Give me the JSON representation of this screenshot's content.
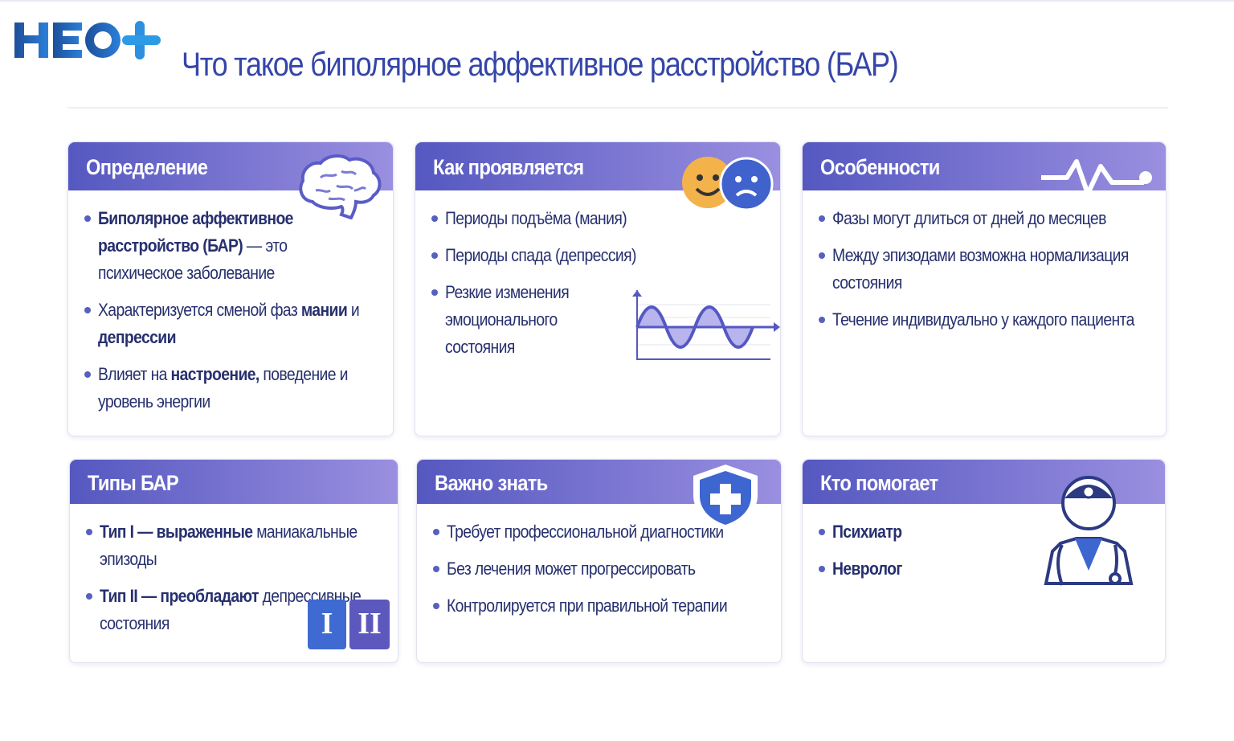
{
  "logo": {
    "text": "НЕО+"
  },
  "title": "Что такое биполярное аффективное расстройство (БАР)",
  "colors": {
    "accent": "#3546a8",
    "header_start": "#5558c0",
    "header_end": "#9a8fe0",
    "text": "#27306e"
  },
  "cards": [
    {
      "title": "Определение",
      "icon": "brain-icon",
      "bullets": [
        [
          {
            "t": "Биполярное аффективное расстройство (БАР)",
            "b": true
          },
          {
            "t": " — это психическое заболевание",
            "b": false
          }
        ],
        [
          {
            "t": "Характеризуется сменой фаз ",
            "b": false
          },
          {
            "t": "мании",
            "b": true
          },
          {
            "t": " и ",
            "b": false
          },
          {
            "t": "депрессии",
            "b": true
          }
        ],
        [
          {
            "t": "Влияет на ",
            "b": false
          },
          {
            "t": "настроение,",
            "b": true
          },
          {
            "t": " поведение и уровень энергии",
            "b": false
          }
        ]
      ]
    },
    {
      "title": "Как проявляется",
      "icon": "happy-sad-faces-icon",
      "bullets": [
        [
          {
            "t": "Периоды подъёма ",
            "b": false
          },
          {
            "t": "(мания)",
            "b": false
          }
        ],
        [
          {
            "t": "Периоды спада ",
            "b": false
          },
          {
            "t": "(депрессия)",
            "b": false
          }
        ],
        [
          {
            "t": "Резкие изменения эмоционального состояния",
            "b": false
          }
        ]
      ]
    },
    {
      "title": "Особенности",
      "icon": "pulse-line-icon",
      "bullets": [
        [
          {
            "t": "Фазы могут длиться от дней до месяцев",
            "b": false
          }
        ],
        [
          {
            "t": "Между эпизодами возможна нормализация состояния",
            "b": false
          }
        ],
        [
          {
            "t": "Течение индивидуально у каждого пациента",
            "b": false
          }
        ]
      ]
    },
    {
      "title": "Типы БАР",
      "icon": "type-one-two-icon",
      "badges": [
        "I",
        "II"
      ],
      "bullets": [
        [
          {
            "t": "Тип I — выраженные",
            "b": true
          },
          {
            "t": " маниакальные эпизоды",
            "b": false
          }
        ],
        [
          {
            "t": "Тип II — преобладают",
            "b": true
          },
          {
            "t": " депрессивные состояния",
            "b": false
          }
        ]
      ]
    },
    {
      "title": "Важно знать",
      "icon": "medical-shield-icon",
      "bullets": [
        [
          {
            "t": "Требует профессиональной диагностики",
            "b": false
          }
        ],
        [
          {
            "t": "Без лечения может прогрессировать",
            "b": false
          }
        ],
        [
          {
            "t": "Контролируется при правильной терапии",
            "b": false
          }
        ]
      ]
    },
    {
      "title": "Кто помогает",
      "icon": "doctor-icon",
      "bullets": [
        [
          {
            "t": "Психиатр",
            "b": true
          }
        ],
        [
          {
            "t": "Невролог",
            "b": true
          }
        ]
      ]
    }
  ]
}
